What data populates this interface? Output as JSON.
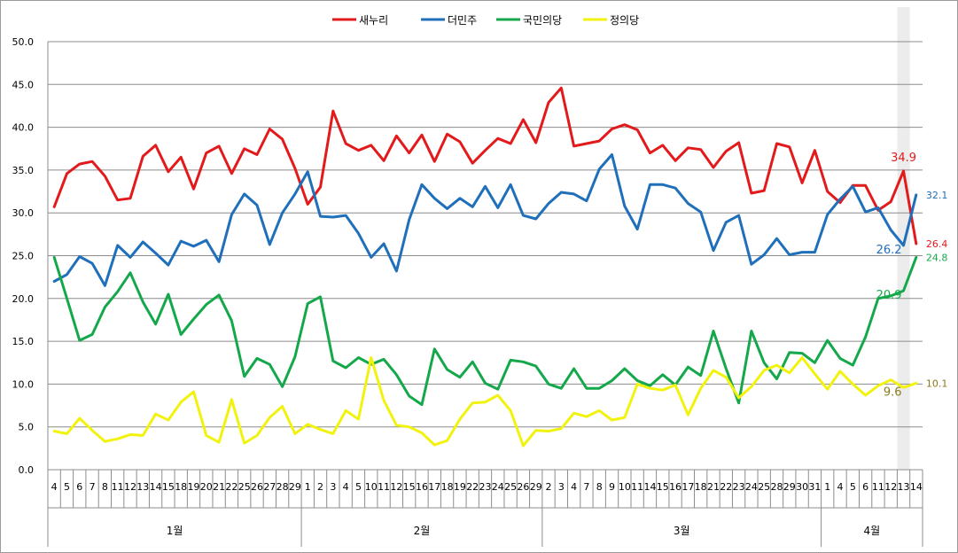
{
  "chart_data": {
    "type": "line",
    "ylim": [
      0,
      50
    ],
    "yticks": [
      "0.0",
      "5.0",
      "10.0",
      "15.0",
      "20.0",
      "25.0",
      "30.0",
      "35.0",
      "40.0",
      "45.0",
      "50.0"
    ],
    "grid": "horizontal",
    "legend_position": "top",
    "x": [
      "4",
      "5",
      "6",
      "7",
      "8",
      "11",
      "12",
      "13",
      "14",
      "15",
      "18",
      "19",
      "20",
      "21",
      "22",
      "25",
      "26",
      "27",
      "28",
      "29",
      "1",
      "2",
      "3",
      "4",
      "5",
      "10",
      "11",
      "12",
      "15",
      "16",
      "17",
      "18",
      "19",
      "22",
      "23",
      "24",
      "25",
      "26",
      "29",
      "2",
      "3",
      "4",
      "7",
      "8",
      "9",
      "10",
      "11",
      "14",
      "15",
      "16",
      "17",
      "18",
      "21",
      "22",
      "23",
      "24",
      "25",
      "28",
      "29",
      "30",
      "31",
      "1",
      "4",
      "5",
      "6",
      "11",
      "12",
      "13",
      "14"
    ],
    "months": [
      {
        "label": "1월",
        "start": 0,
        "end": 19
      },
      {
        "label": "2월",
        "start": 20,
        "end": 38
      },
      {
        "label": "3월",
        "start": 39,
        "end": 60
      },
      {
        "label": "4월",
        "start": 61,
        "end": 68
      }
    ],
    "highlight_index": 67,
    "series": [
      {
        "name": "새누리",
        "color": "#e31a1c",
        "values": [
          30.7,
          34.6,
          35.7,
          36.0,
          34.3,
          31.5,
          31.7,
          36.6,
          37.9,
          34.8,
          36.5,
          32.8,
          37.0,
          37.8,
          34.6,
          37.5,
          36.8,
          39.8,
          38.6,
          35.2,
          31.0,
          33.0,
          41.9,
          38.1,
          37.3,
          37.9,
          36.1,
          39.0,
          37.0,
          39.1,
          36.0,
          39.2,
          38.3,
          35.8,
          37.3,
          38.7,
          38.1,
          40.9,
          38.2,
          42.9,
          44.6,
          37.8,
          38.1,
          38.4,
          39.8,
          40.3,
          39.7,
          37.0,
          37.9,
          36.1,
          37.6,
          37.4,
          35.3,
          37.2,
          38.2,
          32.3,
          32.6,
          38.1,
          37.7,
          33.5,
          37.3,
          32.5,
          31.2,
          33.2,
          33.2,
          30.3,
          31.3,
          34.9,
          26.4
        ]
      },
      {
        "name": "더민주",
        "color": "#1f6fba",
        "values": [
          22.0,
          22.8,
          24.9,
          24.1,
          21.5,
          26.2,
          24.8,
          26.6,
          25.3,
          23.9,
          26.7,
          26.1,
          26.8,
          24.3,
          29.8,
          32.2,
          30.9,
          26.3,
          30.0,
          32.2,
          34.8,
          29.6,
          29.5,
          29.7,
          27.6,
          24.8,
          26.4,
          23.2,
          29.2,
          33.3,
          31.7,
          30.5,
          31.7,
          30.7,
          33.1,
          30.6,
          33.3,
          29.7,
          29.3,
          31.1,
          32.4,
          32.2,
          31.4,
          35.1,
          36.8,
          30.8,
          28.1,
          33.3,
          33.3,
          32.9,
          31.1,
          30.1,
          25.6,
          28.9,
          29.7,
          24.0,
          25.1,
          27.0,
          25.1,
          25.4,
          25.4,
          29.8,
          31.6,
          33.1,
          30.1,
          30.6,
          28.0,
          26.2,
          32.1
        ]
      },
      {
        "name": "국민의당",
        "color": "#14a84b",
        "values": [
          24.8,
          20.0,
          15.1,
          15.8,
          19.0,
          20.8,
          23.0,
          19.6,
          17.0,
          20.5,
          15.8,
          17.6,
          19.3,
          20.4,
          17.4,
          10.9,
          13.0,
          12.3,
          9.7,
          13.2,
          19.4,
          20.2,
          12.7,
          11.9,
          13.1,
          12.3,
          12.9,
          11.1,
          8.6,
          7.6,
          14.1,
          11.7,
          10.8,
          12.6,
          10.1,
          9.4,
          12.8,
          12.6,
          12.1,
          10.0,
          9.5,
          11.8,
          9.5,
          9.5,
          10.4,
          11.8,
          10.4,
          9.8,
          11.1,
          9.9,
          12.0,
          11.0,
          16.2,
          11.8,
          7.8,
          16.2,
          12.5,
          10.6,
          13.7,
          13.6,
          12.5,
          15.1,
          13.0,
          12.2,
          15.5,
          20.0,
          20.3,
          20.9,
          24.8
        ]
      },
      {
        "name": "정의당",
        "color": "#f2f20f",
        "values": [
          4.5,
          4.2,
          6.0,
          4.6,
          3.3,
          3.6,
          4.1,
          4.0,
          6.5,
          5.8,
          7.9,
          9.1,
          4.0,
          3.2,
          8.2,
          3.1,
          4.0,
          6.1,
          7.4,
          4.2,
          5.3,
          4.7,
          4.2,
          6.9,
          5.9,
          13.1,
          8.1,
          5.2,
          5.0,
          4.3,
          2.9,
          3.4,
          5.9,
          7.8,
          7.9,
          8.7,
          6.9,
          2.8,
          4.6,
          4.5,
          4.8,
          6.6,
          6.2,
          6.9,
          5.8,
          6.1,
          10.0,
          9.5,
          9.3,
          9.9,
          6.4,
          9.5,
          11.6,
          10.8,
          8.4,
          9.7,
          11.6,
          12.2,
          11.3,
          13.1,
          11.2,
          9.4,
          11.5,
          10.0,
          8.7,
          9.8,
          10.5,
          9.6,
          10.1
        ]
      }
    ],
    "annotations": [
      {
        "series": 0,
        "index": 67,
        "text": "34.9",
        "placement": "above",
        "size": "big"
      },
      {
        "series": 0,
        "index": 68,
        "text": "26.4",
        "placement": "right",
        "size": "small"
      },
      {
        "series": 1,
        "index": 68,
        "text": "32.1",
        "placement": "right",
        "size": "small"
      },
      {
        "series": 1,
        "index": 67,
        "text": "26.2",
        "placement": "below-left",
        "size": "big"
      },
      {
        "series": 2,
        "index": 68,
        "text": "24.8",
        "placement": "right",
        "size": "small"
      },
      {
        "series": 2,
        "index": 67,
        "text": "20.9",
        "placement": "below-left",
        "size": "big"
      },
      {
        "series": 3,
        "index": 68,
        "text": "10.1",
        "placement": "right",
        "size": "small",
        "color": "#8a7a1a"
      },
      {
        "series": 3,
        "index": 67,
        "text": "9.6",
        "placement": "below-left",
        "size": "big",
        "color": "#8a7a1a"
      }
    ]
  }
}
